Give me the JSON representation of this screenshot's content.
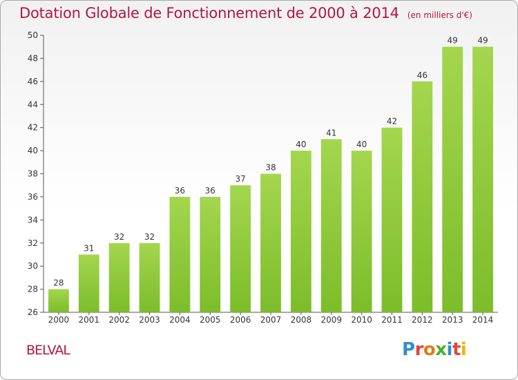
{
  "chart_data": {
    "type": "bar",
    "title": "Dotation Globale de Fonctionnement de 2000 à 2014",
    "subtitle": "(en milliers d'€)",
    "categories": [
      "2000",
      "2001",
      "2002",
      "2003",
      "2004",
      "2005",
      "2006",
      "2007",
      "2008",
      "2009",
      "2010",
      "2011",
      "2012",
      "2013",
      "2014"
    ],
    "values": [
      28,
      31,
      32,
      32,
      36,
      36,
      37,
      38,
      40,
      41,
      40,
      42,
      46,
      49,
      49
    ],
    "ylim": [
      26,
      50
    ],
    "yticks": [
      26,
      28,
      30,
      32,
      34,
      36,
      38,
      40,
      42,
      44,
      46,
      48,
      50
    ],
    "xlabel": "",
    "ylabel": "",
    "grid": false,
    "bar_color": "#7cbd2a",
    "bar_color_light": "#a4d64e"
  },
  "footer": {
    "location": "BELVAL",
    "brand": "Proxiti",
    "brand_colors": [
      "#2f8fcf",
      "#e2443a",
      "#e07b1a",
      "#4caf2a",
      "#2f8fcf",
      "#e2443a",
      "#f0b400"
    ]
  }
}
